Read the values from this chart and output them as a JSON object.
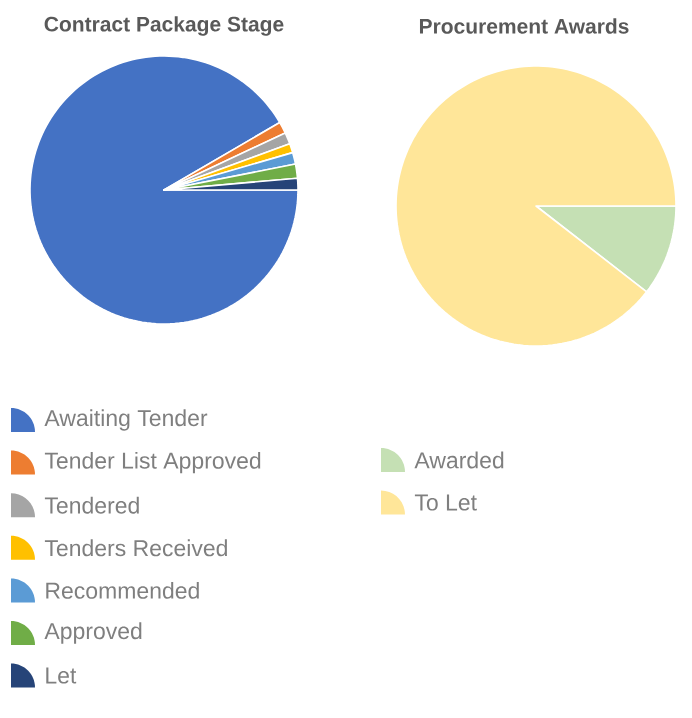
{
  "chart_data": [
    {
      "type": "pie",
      "title": "Contract Package Stage",
      "categories": [
        "Awaiting Tender",
        "Tender List Approved",
        "Tendered",
        "Tenders Received",
        "Recommended",
        "Approved",
        "Let"
      ],
      "values": [
        91.6,
        1.4,
        1.4,
        1.1,
        1.4,
        1.7,
        1.4
      ],
      "colors": [
        "#4472c4",
        "#ed7d31",
        "#a5a5a5",
        "#ffc000",
        "#5b9bd5",
        "#70ad47",
        "#264478"
      ],
      "legend": "bottom"
    },
    {
      "type": "pie",
      "title": "Procurement Awards",
      "categories": [
        "Awarded",
        "To Let"
      ],
      "values": [
        10.5,
        89.5
      ],
      "colors": [
        "#c5e0b4",
        "#ffe699"
      ],
      "legend": "bottom"
    }
  ]
}
